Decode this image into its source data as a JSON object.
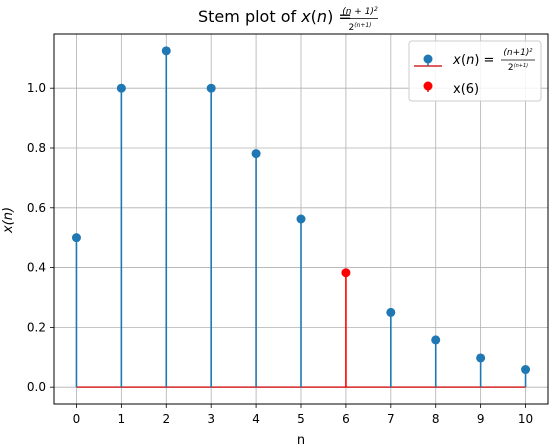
{
  "chart_data": {
    "type": "stem",
    "title": "Stem plot of x(n) = (n+1)²/2⁽ⁿ⁺¹⁾",
    "xlabel": "n",
    "ylabel": "x(n)",
    "x": [
      0,
      1,
      2,
      3,
      4,
      5,
      6,
      7,
      8,
      9,
      10
    ],
    "values": [
      0.5,
      1.0,
      1.125,
      1.0,
      0.78125,
      0.5625,
      0.3828125,
      0.25,
      0.158203125,
      0.09765625,
      0.05908203125
    ],
    "highlight": {
      "n": 6,
      "value": 0.3828125,
      "label": "x(6)",
      "color": "#ff0000"
    },
    "xlim": [
      -0.5,
      10.5
    ],
    "ylim": [
      -0.05625,
      1.18125
    ],
    "x_ticks": [
      0,
      1,
      2,
      3,
      4,
      5,
      6,
      7,
      8,
      9,
      10
    ],
    "y_ticks": [
      0.0,
      0.2,
      0.4,
      0.6,
      0.8,
      1.0
    ],
    "y_tick_labels": [
      "0.0",
      "0.2",
      "0.4",
      "0.6",
      "0.8",
      "1.0"
    ],
    "grid": true,
    "legend_position": "top-right",
    "legend": [
      {
        "label": "x(n) = (n+1)²/2⁽ⁿ⁺¹⁾",
        "marker": "circle",
        "color": "#1f77b4"
      },
      {
        "label": "x(6)",
        "marker": "circle",
        "color": "#ff0000"
      }
    ],
    "colors": {
      "stem": "#1f77b4",
      "baseline": "#d62728",
      "highlight": "#ff0000",
      "grid": "#b0b0b0"
    }
  }
}
